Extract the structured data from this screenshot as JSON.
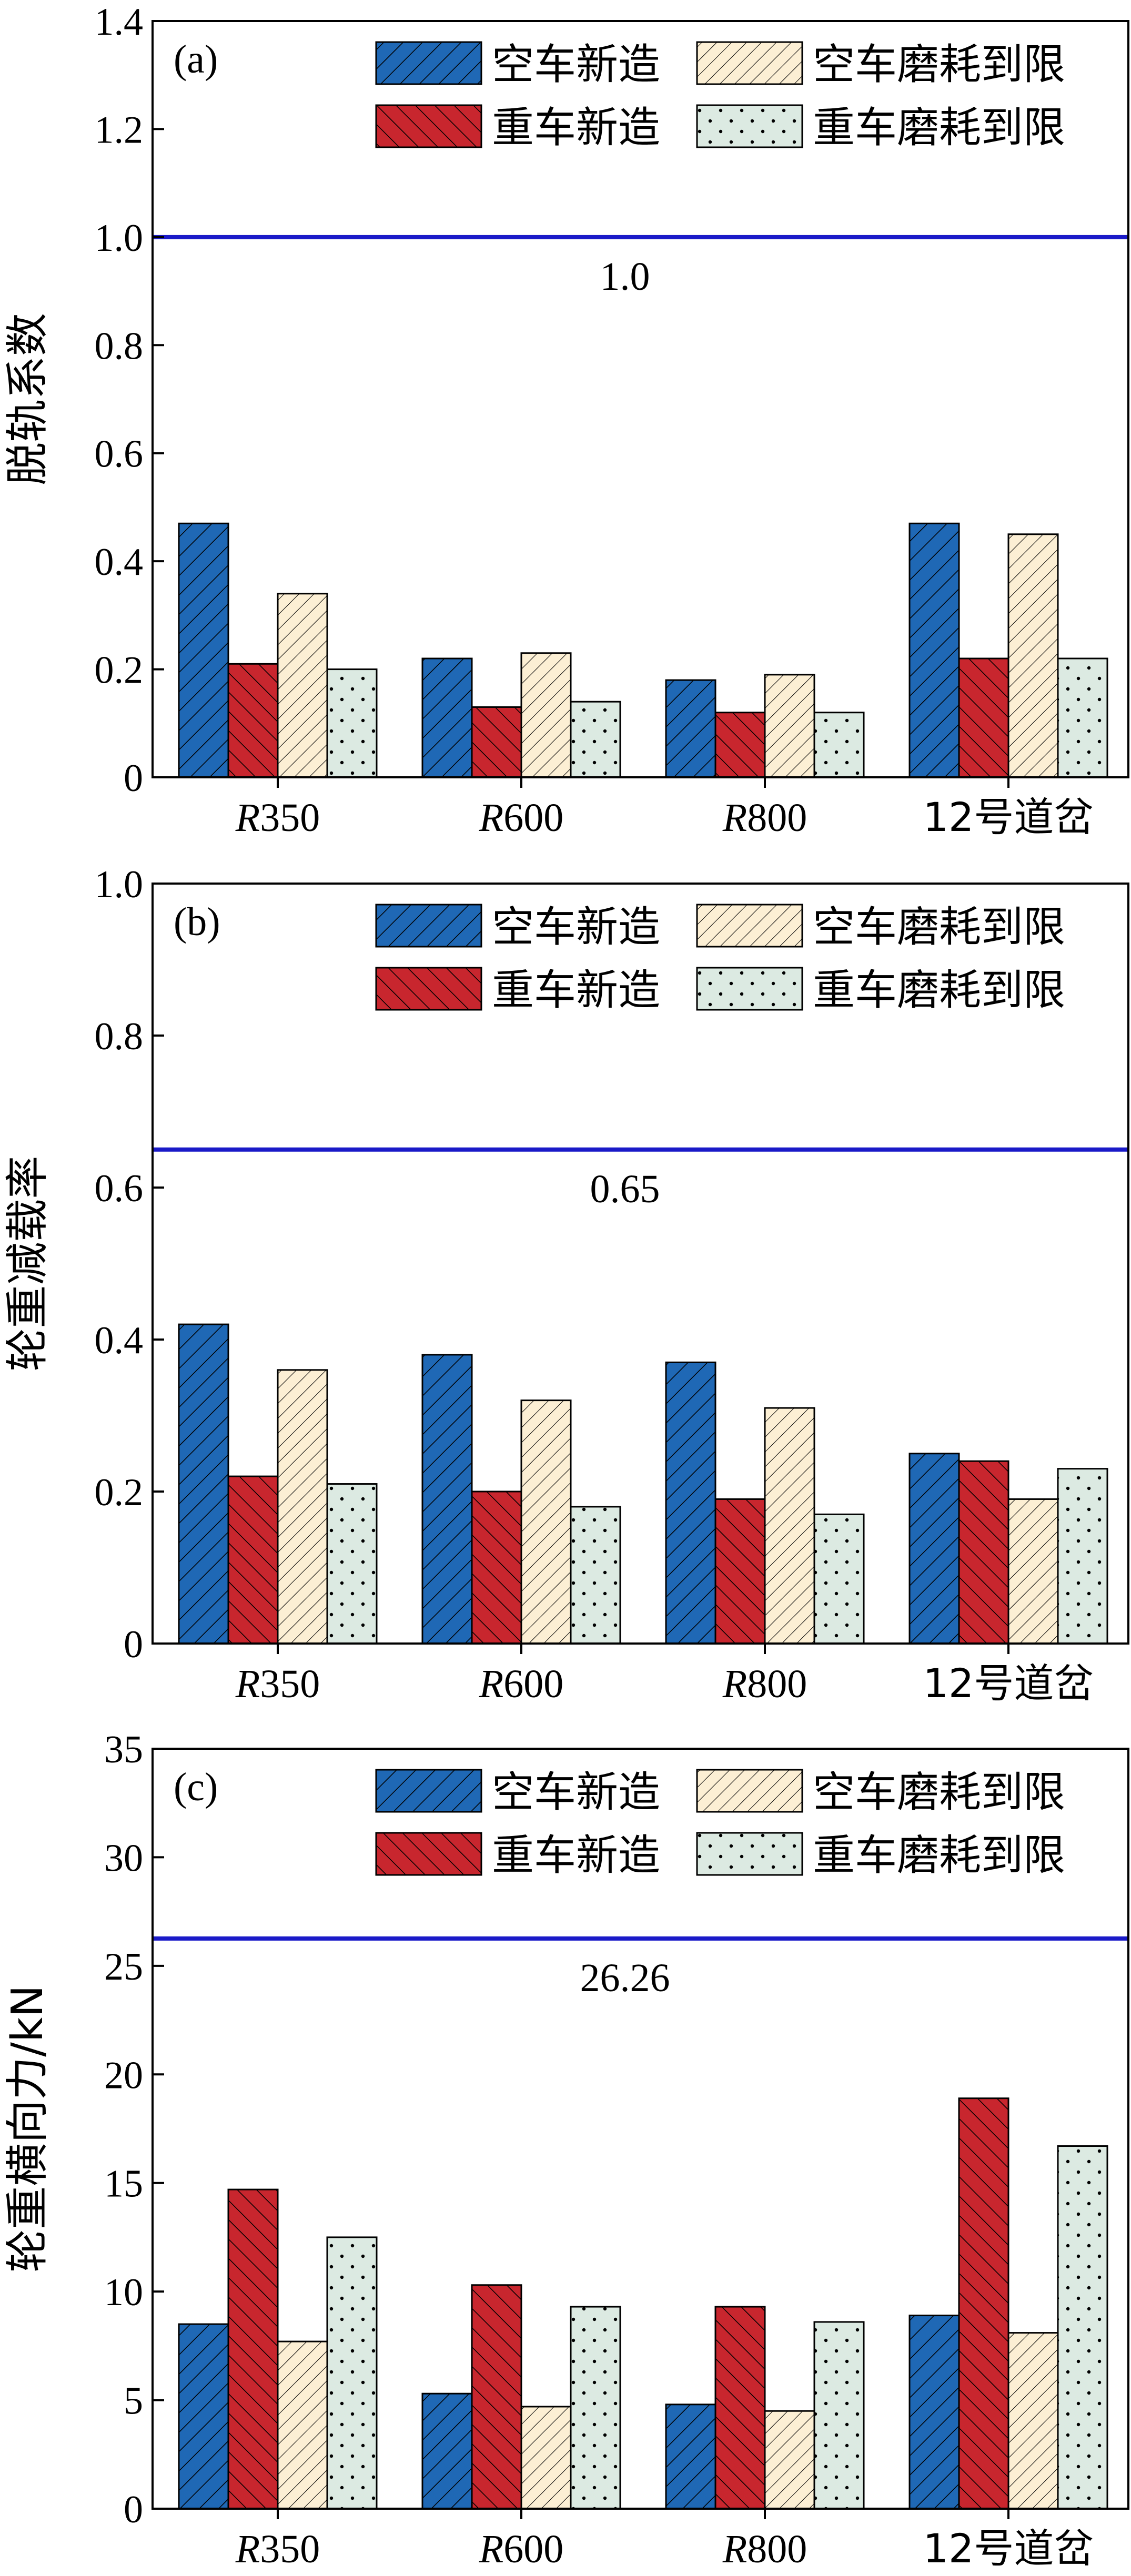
{
  "chart_data": [
    {
      "type": "bar",
      "panel_label": "(a)",
      "ylabel": "脱轨系数",
      "categories": [
        "R350",
        "R600",
        "R800",
        "12号道岔"
      ],
      "ylim": [
        0,
        1.4
      ],
      "yticks": [
        "0",
        "0.2",
        "0.4",
        "0.6",
        "0.8",
        "1.0",
        "1.2",
        "1.4"
      ],
      "limit_value": 1.0,
      "limit_label": "1.0",
      "legend_position": "top-right",
      "series": [
        {
          "name": "空车新造",
          "values": [
            0.47,
            0.22,
            0.18,
            0.47
          ]
        },
        {
          "name": "重车新造",
          "values": [
            0.21,
            0.13,
            0.12,
            0.22
          ]
        },
        {
          "name": "空车磨耗到限",
          "values": [
            0.34,
            0.23,
            0.19,
            0.45
          ]
        },
        {
          "name": "重车磨耗到限",
          "values": [
            0.2,
            0.14,
            0.12,
            0.22
          ]
        }
      ]
    },
    {
      "type": "bar",
      "panel_label": "(b)",
      "ylabel": "轮重减载率",
      "categories": [
        "R350",
        "R600",
        "R800",
        "12号道岔"
      ],
      "ylim": [
        0,
        1.0
      ],
      "yticks": [
        "0",
        "0.2",
        "0.4",
        "0.6",
        "0.8",
        "1.0"
      ],
      "limit_value": 0.65,
      "limit_label": "0.65",
      "legend_position": "top-right",
      "series": [
        {
          "name": "空车新造",
          "values": [
            0.42,
            0.38,
            0.37,
            0.25
          ]
        },
        {
          "name": "重车新造",
          "values": [
            0.22,
            0.2,
            0.19,
            0.24
          ]
        },
        {
          "name": "空车磨耗到限",
          "values": [
            0.36,
            0.32,
            0.31,
            0.19
          ]
        },
        {
          "name": "重车磨耗到限",
          "values": [
            0.21,
            0.18,
            0.17,
            0.23
          ]
        }
      ]
    },
    {
      "type": "bar",
      "panel_label": "(c)",
      "ylabel": "轮重横向力/kN",
      "categories": [
        "R350",
        "R600",
        "R800",
        "12号道岔"
      ],
      "ylim": [
        0,
        35
      ],
      "yticks": [
        "0",
        "5",
        "10",
        "15",
        "20",
        "25",
        "30",
        "35"
      ],
      "limit_value": 26.26,
      "limit_label": "26.26",
      "legend_position": "top-right",
      "series": [
        {
          "name": "空车新造",
          "values": [
            8.5,
            5.3,
            4.8,
            8.9
          ]
        },
        {
          "name": "重车新造",
          "values": [
            14.7,
            10.3,
            9.3,
            18.9
          ]
        },
        {
          "name": "空车磨耗到限",
          "values": [
            7.7,
            4.7,
            4.5,
            8.1
          ]
        },
        {
          "name": "重车磨耗到限",
          "values": [
            12.5,
            9.3,
            8.6,
            16.7
          ]
        }
      ]
    }
  ],
  "style": {
    "series_fill": [
      "#1f68b5",
      "#c8262e",
      "#fcefd4",
      "#dceae2"
    ],
    "series_pattern": [
      "hatch-forward",
      "hatch-back",
      "hatch-forward-dense",
      "dots"
    ],
    "limit_line_color": "#1a1ac8"
  }
}
